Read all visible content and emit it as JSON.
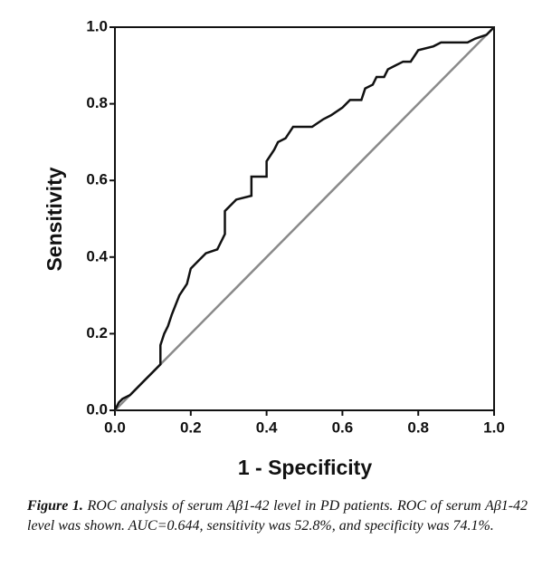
{
  "chart_data": {
    "type": "line",
    "xlabel": "1 - Specificity",
    "ylabel": "Sensitivity",
    "xlim": [
      0,
      1
    ],
    "ylim": [
      0,
      1
    ],
    "xticks": [
      {
        "value": 0,
        "label": "0.0"
      },
      {
        "value": 0.2,
        "label": "0.2"
      },
      {
        "value": 0.4,
        "label": "0.4"
      },
      {
        "value": 0.6,
        "label": "0.6"
      },
      {
        "value": 0.8,
        "label": "0.8"
      },
      {
        "value": 1,
        "label": "1.0"
      }
    ],
    "yticks": [
      {
        "value": 0,
        "label": "0.0"
      },
      {
        "value": 0.2,
        "label": "0.2"
      },
      {
        "value": 0.4,
        "label": "0.4"
      },
      {
        "value": 0.6,
        "label": "0.6"
      },
      {
        "value": 0.8,
        "label": "0.8"
      },
      {
        "value": 1,
        "label": "1.0"
      }
    ],
    "series": [
      {
        "color": "#111111",
        "x": [
          0,
          0.01,
          0.02,
          0.04,
          0.05,
          0.06,
          0.08,
          0.1,
          0.12,
          0.12,
          0.13,
          0.14,
          0.15,
          0.17,
          0.19,
          0.2,
          0.22,
          0.24,
          0.27,
          0.28,
          0.29,
          0.29,
          0.3,
          0.32,
          0.36,
          0.36,
          0.4,
          0.4,
          0.42,
          0.43,
          0.45,
          0.47,
          0.52,
          0.55,
          0.57,
          0.6,
          0.62,
          0.65,
          0.66,
          0.68,
          0.69,
          0.71,
          0.72,
          0.74,
          0.76,
          0.78,
          0.8,
          0.84,
          0.86,
          0.93,
          0.95,
          0.98,
          1
        ],
        "values": [
          0,
          0.02,
          0.03,
          0.04,
          0.05,
          0.06,
          0.08,
          0.1,
          0.12,
          0.17,
          0.2,
          0.22,
          0.25,
          0.3,
          0.33,
          0.37,
          0.39,
          0.41,
          0.42,
          0.44,
          0.46,
          0.52,
          0.53,
          0.55,
          0.56,
          0.61,
          0.61,
          0.65,
          0.68,
          0.7,
          0.71,
          0.74,
          0.74,
          0.76,
          0.77,
          0.79,
          0.81,
          0.81,
          0.84,
          0.85,
          0.87,
          0.87,
          0.89,
          0.9,
          0.91,
          0.91,
          0.94,
          0.95,
          0.96,
          0.96,
          0.97,
          0.98,
          1
        ]
      },
      {
        "color": "#8a8a8a",
        "x": [
          0,
          1
        ],
        "values": [
          0,
          1
        ]
      }
    ]
  },
  "caption": {
    "label": "Figure 1.",
    "text": "ROC analysis of serum Aβ1-42 level in PD patients. ROC of serum Aβ1-42 level was shown. AUC=0.644, sensitivity was 52.8%, and specificity was 74.1%."
  }
}
